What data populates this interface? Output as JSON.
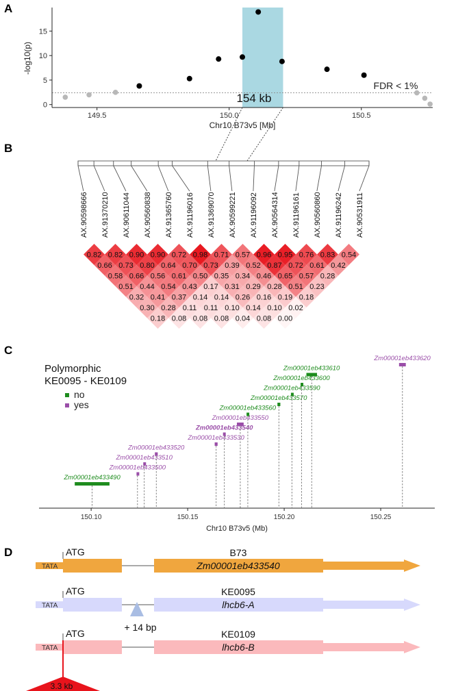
{
  "panels": {
    "A": "A",
    "B": "B",
    "C": "C",
    "D": "D"
  },
  "chart_data": [
    {
      "type": "scatter",
      "panel": "A",
      "title": "",
      "xlabel": "Chr10 B73v5 [Mb]",
      "ylabel": "-log10(p)",
      "xlim": [
        149.33,
        150.77
      ],
      "ylim": [
        -0.6,
        19.8
      ],
      "xticks": [
        149.5,
        150.0,
        150.5
      ],
      "xtick_labels": [
        "149.5",
        "150.0",
        "150.5"
      ],
      "yticks": [
        0,
        5,
        10,
        15
      ],
      "ytick_labels": [
        "0",
        "5",
        "10",
        "15"
      ],
      "threshold": {
        "value": 2.4,
        "label": "FDR < 1%"
      },
      "region": {
        "x0": 150.05,
        "x1": 150.204,
        "label": "154 kb",
        "color": "#aad8e2"
      },
      "point_colors": {
        "significant": "#000000",
        "nonsignificant": "#b8b8b8"
      },
      "points": [
        {
          "x": 149.38,
          "y": 1.5,
          "sig": false
        },
        {
          "x": 149.47,
          "y": 2.0,
          "sig": false
        },
        {
          "x": 149.57,
          "y": 2.5,
          "sig": false
        },
        {
          "x": 149.66,
          "y": 3.8,
          "sig": true
        },
        {
          "x": 149.85,
          "y": 5.3,
          "sig": true
        },
        {
          "x": 149.96,
          "y": 9.3,
          "sig": true
        },
        {
          "x": 150.05,
          "y": 9.7,
          "sig": true
        },
        {
          "x": 150.11,
          "y": 18.9,
          "sig": true
        },
        {
          "x": 150.2,
          "y": 8.8,
          "sig": true
        },
        {
          "x": 150.37,
          "y": 7.2,
          "sig": true
        },
        {
          "x": 150.51,
          "y": 6.0,
          "sig": true
        },
        {
          "x": 150.71,
          "y": 2.4,
          "sig": false
        },
        {
          "x": 150.74,
          "y": 1.3,
          "sig": false
        },
        {
          "x": 150.76,
          "y": 0.1,
          "sig": false
        }
      ]
    },
    {
      "type": "heatmap",
      "panel": "B",
      "title": "",
      "markers": [
        "AX.90598666",
        "AX.91370210",
        "AX.90611044",
        "AX.90560838",
        "AX.91365760",
        "AX.91196016",
        "AX.91369070",
        "AX.90599221",
        "AX.91196092",
        "AX.90564314",
        "AX.91196161",
        "AX.90560860",
        "AX.91196242",
        "AX.90531911"
      ],
      "marker_positions": [
        0,
        8.5,
        19,
        28.5,
        43,
        50.5,
        69.5,
        81,
        94.5,
        107.5,
        118.5,
        130.5,
        143,
        156
      ],
      "r2_rows": [
        [
          "0.82",
          "0.82",
          "0.90",
          "0.90",
          "0.72",
          "0.98",
          "0.71",
          "0.57",
          "0.96",
          "0.95",
          "0.76",
          "0.83",
          "0.54"
        ],
        [
          "0.66",
          "0.73",
          "0.80",
          "0.64",
          "0.70",
          "0.73",
          "0.39",
          "0.52",
          "0.87",
          "0.72",
          "0.61",
          "0.42"
        ],
        [
          "0.58",
          "0.66",
          "0.56",
          "0.61",
          "0.50",
          "0.35",
          "0.34",
          "0.46",
          "0.65",
          "0.57",
          "0.28"
        ],
        [
          "0.51",
          "0.44",
          "0.54",
          "0.43",
          "0.17",
          "0.31",
          "0.29",
          "0.28",
          "0.51",
          "0.23"
        ],
        [
          "0.32",
          "0.41",
          "0.37",
          "0.14",
          "0.14",
          "0.26",
          "0.16",
          "0.19",
          "0.18"
        ],
        [
          "0.30",
          "0.28",
          "0.11",
          "0.11",
          "0.10",
          "0.14",
          "0.10",
          "0.02"
        ],
        [
          "0.18",
          "0.08",
          "0.08",
          "0.08",
          "0.04",
          "0.08",
          "0.00"
        ]
      ],
      "r2_colors": {
        "high": "#e8141c",
        "low": "#ffffff"
      }
    },
    {
      "type": "scatter",
      "panel": "C",
      "title": "Polymorphic\nKE0095 - KE0109",
      "xlabel": "Chr10 B73v5 (Mb)",
      "ylabel": "",
      "xlim": [
        150.073,
        150.278
      ],
      "xticks": [
        150.1,
        150.15,
        150.2,
        150.25
      ],
      "xtick_labels": [
        "150.10",
        "150.15",
        "150.20",
        "150.25"
      ],
      "legend_title": "Polymorphic\nKE0095 - KE0109",
      "legend": [
        {
          "label": "no",
          "color": "#1e8c1e"
        },
        {
          "label": "yes",
          "color": "#9a4ea8"
        }
      ],
      "genes": [
        {
          "label": "Zm00001eb433490",
          "start": 150.0915,
          "end": 150.1095,
          "center": 150.1005,
          "level": 0,
          "polymorphic": "no",
          "bold": false
        },
        {
          "label": "Zm00001eb433500",
          "start": 150.1235,
          "end": 150.1245,
          "center": 150.124,
          "level": 1,
          "polymorphic": "yes",
          "bold": false
        },
        {
          "label": "Zm00001eb433510",
          "start": 150.127,
          "end": 150.128,
          "center": 150.1275,
          "level": 2,
          "polymorphic": "yes",
          "bold": false
        },
        {
          "label": "Zm00001eb433520",
          "start": 150.133,
          "end": 150.1345,
          "center": 150.1337,
          "level": 3,
          "polymorphic": "yes",
          "bold": false
        },
        {
          "label": "Zm00001eb433530",
          "start": 150.164,
          "end": 150.1655,
          "center": 150.1647,
          "level": 4,
          "polymorphic": "yes",
          "bold": false
        },
        {
          "label": "Zm00001eb433540",
          "start": 150.1683,
          "end": 150.1697,
          "center": 150.169,
          "level": 5,
          "polymorphic": "yes",
          "bold": true
        },
        {
          "label": "Zm00001eb433550",
          "start": 150.1755,
          "end": 150.179,
          "center": 150.1772,
          "level": 6,
          "polymorphic": "yes",
          "bold": false
        },
        {
          "label": "Zm00001eb433560",
          "start": 150.1805,
          "end": 150.1818,
          "center": 150.1811,
          "level": 7,
          "polymorphic": "no",
          "bold": false
        },
        {
          "label": "Zm00001eb433570",
          "start": 150.1965,
          "end": 150.198,
          "center": 150.1972,
          "level": 8,
          "polymorphic": "no",
          "bold": false
        },
        {
          "label": "Zm00001eb433590",
          "start": 150.2035,
          "end": 150.2045,
          "center": 150.204,
          "level": 9,
          "polymorphic": "no",
          "bold": false
        },
        {
          "label": "Zm00001eb433600",
          "start": 150.2085,
          "end": 150.2095,
          "center": 150.209,
          "level": 10,
          "polymorphic": "no",
          "bold": false
        },
        {
          "label": "Zm00001eb433610",
          "start": 150.2115,
          "end": 150.217,
          "center": 150.2142,
          "level": 11,
          "polymorphic": "no",
          "bold": false
        },
        {
          "label": "Zm00001eb433620",
          "start": 150.2595,
          "end": 150.263,
          "center": 150.2612,
          "level": 12,
          "polymorphic": "yes",
          "bold": false
        }
      ]
    }
  ],
  "panel_a": {
    "region_label": "154 kb",
    "fdr_label": "FDR < 1%"
  },
  "panel_d": {
    "tata_label": "TATA",
    "atg_label": "ATG",
    "alleles": [
      {
        "name": "B73",
        "gene": "Zm00001eb433540",
        "color": "#f0a63e"
      },
      {
        "name": "KE0095",
        "gene": "lhcb6-A",
        "color": "#d7d9fc"
      },
      {
        "name": "KE0109",
        "gene": "lhcb6-B",
        "color": "#fbb9bc"
      }
    ],
    "insertion_label": "+ 14 bp",
    "insertion_color": "#a9bde3",
    "te_label": "3.3 kb",
    "te_color": "#e8141c"
  }
}
